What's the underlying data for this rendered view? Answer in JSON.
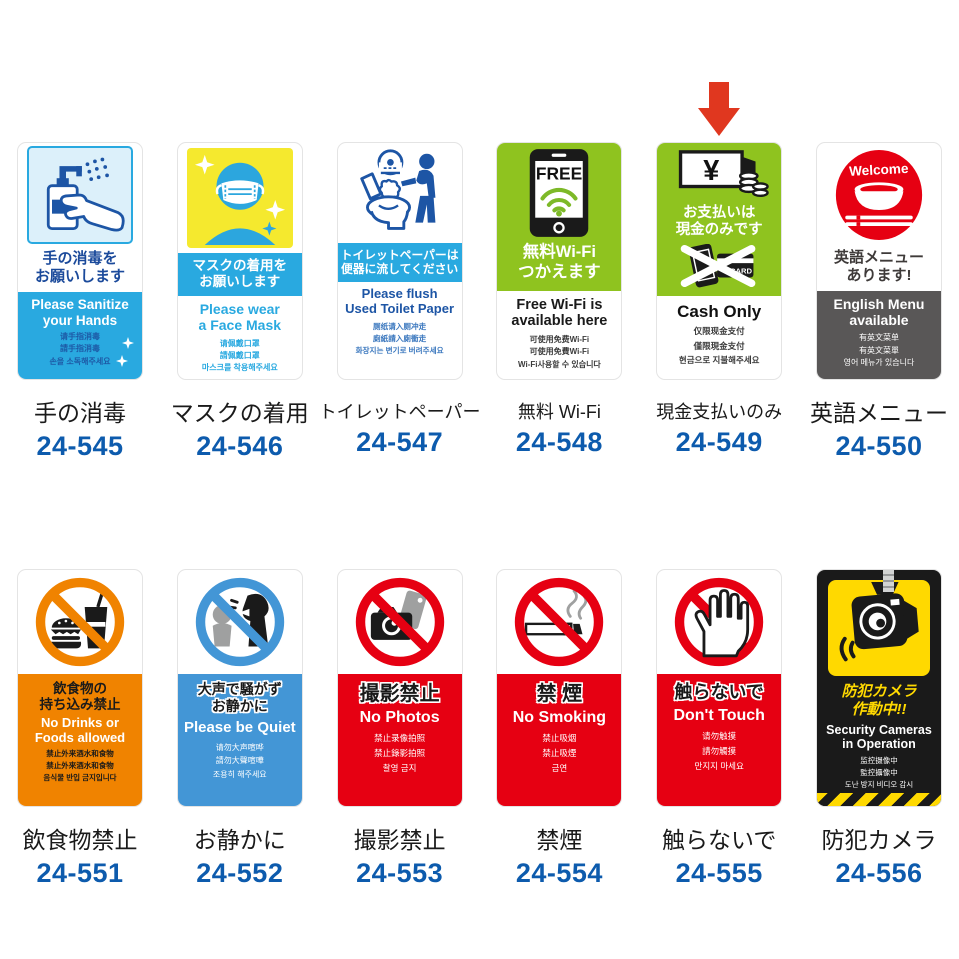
{
  "page": {
    "background": "#FFFFFF"
  },
  "colors": {
    "cyan_blue": "#29A9E0",
    "dark_blue_heading": "#1B4A9B",
    "wifi_green": "#8FC31F",
    "prohibit_red": "#E60012",
    "food_orange": "#F08300",
    "quiet_blue": "#4396D6",
    "menu_gray": "#595757",
    "camera_yellow": "#FFD900",
    "mask_yellow": "#F5E92E",
    "code_blue": "#0D5BAD",
    "label_black": "#1A1A1A",
    "arrow_red": "#E0371F"
  },
  "highlight_arrow": {
    "color": "#E0371F",
    "points_to": "24-549"
  },
  "products": [
    {
      "label": "手の消毒",
      "code": "24-545",
      "variant": "sanitize",
      "icon": "hand-sanitizer-icon",
      "accent": "#29A9E0",
      "heading_lines": [
        "手の消毒を",
        "お願いします"
      ],
      "english_lines": [
        "Please Sanitize",
        "your Hands"
      ],
      "other_lines": [
        "请手指消毒",
        "請手指消毒",
        "손을 소독해주세요"
      ],
      "icon_texts": [],
      "highlighted": false
    },
    {
      "label": "マスクの着用",
      "code": "24-546",
      "variant": "mask",
      "icon": "face-mask-icon",
      "accent": "#29A9E0",
      "heading_lines": [
        "マスクの着用を",
        "お願いします"
      ],
      "english_lines": [
        "Please wear",
        "a Face Mask"
      ],
      "other_lines": [
        "请佩戴口罩",
        "請佩戴口罩",
        "마스크를 착용해주세요"
      ],
      "icon_texts": [],
      "highlighted": false
    },
    {
      "label": "トイレットペーパー",
      "code": "24-547",
      "variant": "toilet",
      "icon": "toilet-flush-icon",
      "accent": "#29A9E0",
      "heading_lines": [
        "トイレットペーパーは",
        "便器に流してください"
      ],
      "english_lines": [
        "Please flush",
        "Used Toilet Paper"
      ],
      "other_lines": [
        "厕纸请入厕冲走",
        "廁紙請入廁衝走",
        "화장지는 변기로 버려주세요"
      ],
      "icon_texts": [],
      "highlighted": false
    },
    {
      "label": "無料 Wi-Fi",
      "code": "24-548",
      "variant": "wifi",
      "icon": "free-wifi-phone-icon",
      "accent": "#8FC31F",
      "heading_lines": [
        "無料Wi-Fi",
        "つかえます"
      ],
      "english_lines": [
        "Free Wi-Fi is",
        "available here"
      ],
      "other_lines": [
        "可使用免费Wi-Fi",
        "可使用免費Wi-Fi",
        "Wi-Fi사용할 수 있습니다"
      ],
      "icon_texts": [
        "FREE"
      ],
      "highlighted": false
    },
    {
      "label": "現金支払いのみ",
      "code": "24-549",
      "variant": "cash",
      "icon": "cash-bill-icon",
      "icon2": "no-cashless-icon",
      "accent": "#8FC31F",
      "heading_lines": [
        "お支払いは",
        "現金のみです"
      ],
      "english_lines": [
        "Cash Only"
      ],
      "other_lines": [
        "仅限现金支付",
        "僅限現金支付",
        "현금으로 지불해주세요"
      ],
      "icon_texts": [
        "¥",
        "CARD"
      ],
      "highlighted": true
    },
    {
      "label": "英語メニュー",
      "code": "24-550",
      "variant": "menu",
      "icon": "english-menu-icon",
      "accent": "#E60012",
      "heading_lines": [
        "英語メニュー",
        "あります!"
      ],
      "english_lines": [
        "English Menu",
        "available"
      ],
      "other_lines": [
        "有英文菜单",
        "有英文菜單",
        "영어 메뉴가 있습니다"
      ],
      "icon_texts": [
        "Welcome"
      ],
      "highlighted": false
    },
    {
      "label": "飲食物禁止",
      "code": "24-551",
      "variant": "food",
      "icon": "no-food-icon",
      "accent": "#F08300",
      "heading_lines": [
        "飲食物の",
        "持ち込み禁止"
      ],
      "english_lines": [
        "No Drinks or",
        "Foods allowed"
      ],
      "other_lines": [
        "禁止外来酒水和食物",
        "禁止外來酒水和食物",
        "음식물 반입 금지입니다"
      ],
      "icon_texts": [],
      "highlighted": false
    },
    {
      "label": "お静かに",
      "code": "24-552",
      "variant": "quiet",
      "icon": "be-quiet-icon",
      "accent": "#4396D6",
      "heading_lines": [
        "大声で騒がず",
        "お静かに"
      ],
      "english_lines": [
        "Please be Quiet"
      ],
      "other_lines": [
        "请勿大声喧哗",
        "請勿大聲喧嘩",
        "조용히 해주세요"
      ],
      "icon_texts": [],
      "highlighted": false
    },
    {
      "label": "撮影禁止",
      "code": "24-553",
      "variant": "photo",
      "icon": "no-photo-icon",
      "accent": "#E60012",
      "heading_lines": [
        "撮影禁止"
      ],
      "english_lines": [
        "No Photos"
      ],
      "other_lines": [
        "禁止录像拍照",
        "禁止錄影拍照",
        "촬영 금지"
      ],
      "icon_texts": [],
      "highlighted": false
    },
    {
      "label": "禁煙",
      "code": "24-554",
      "variant": "smoke",
      "icon": "no-smoking-icon",
      "accent": "#E60012",
      "heading_lines": [
        "禁 煙"
      ],
      "english_lines": [
        "No Smoking"
      ],
      "other_lines": [
        "禁止吸烟",
        "禁止吸煙",
        "금연"
      ],
      "icon_texts": [],
      "highlighted": false
    },
    {
      "label": "触らないで",
      "code": "24-555",
      "variant": "touch",
      "icon": "no-touch-icon",
      "accent": "#E60012",
      "heading_lines": [
        "触らないで"
      ],
      "english_lines": [
        "Don't Touch"
      ],
      "other_lines": [
        "请勿触摸",
        "請勿觸摸",
        "만지지 마세요"
      ],
      "icon_texts": [],
      "highlighted": false
    },
    {
      "label": "防犯カメラ",
      "code": "24-556",
      "variant": "camera",
      "icon": "security-camera-icon",
      "accent": "#FFD900",
      "heading_lines": [
        "防犯カメラ",
        "作動中!!"
      ],
      "english_lines": [
        "Security Cameras",
        "in Operation"
      ],
      "other_lines": [
        "监控摄像中",
        "監控攝像中",
        "도난 방지 비디오 감시"
      ],
      "icon_texts": [],
      "highlighted": false
    }
  ]
}
